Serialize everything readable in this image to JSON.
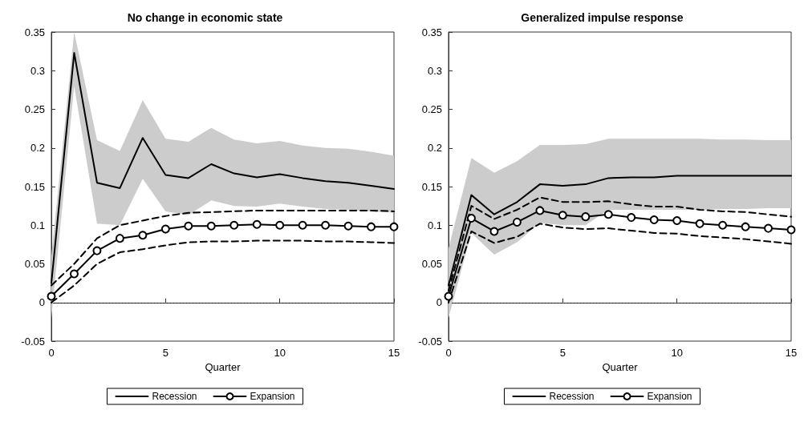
{
  "chart_data": [
    {
      "type": "line",
      "title": "No change in economic state",
      "xlabel": "Quarter",
      "x": [
        0,
        1,
        2,
        3,
        4,
        5,
        6,
        7,
        8,
        9,
        10,
        11,
        12,
        13,
        14,
        15
      ],
      "xlim": [
        0,
        15
      ],
      "xticks": [
        0,
        5,
        10,
        15
      ],
      "ylim": [
        -0.05,
        0.35
      ],
      "yticks": [
        -0.05,
        0,
        0.05,
        0.1,
        0.15,
        0.2,
        0.25,
        0.3,
        0.35
      ],
      "grid": false,
      "legend": "bottom",
      "ref_lines": [
        {
          "axis": "y",
          "value": 0,
          "color": "#000000",
          "line_style": "dotted"
        }
      ],
      "series": [
        {
          "name": "Recession",
          "color": "#000000",
          "line_style": "solid",
          "marker": "none",
          "values": [
            0.025,
            0.323,
            0.155,
            0.148,
            0.213,
            0.165,
            0.161,
            0.179,
            0.167,
            0.162,
            0.166,
            0.161,
            0.157,
            0.155,
            0.151,
            0.147
          ],
          "lower": [
            -0.02,
            0.28,
            0.102,
            0.1,
            0.16,
            0.118,
            0.113,
            0.132,
            0.125,
            0.124,
            0.128,
            0.124,
            0.121,
            0.12,
            0.118,
            0.116
          ],
          "upper": [
            0.06,
            0.35,
            0.21,
            0.196,
            0.262,
            0.212,
            0.208,
            0.226,
            0.211,
            0.206,
            0.209,
            0.203,
            0.2,
            0.199,
            0.195,
            0.19
          ]
        },
        {
          "name": "Expansion",
          "color": "#000000",
          "line_style": "solid",
          "marker": "circle",
          "values": [
            0.008,
            0.037,
            0.067,
            0.083,
            0.087,
            0.095,
            0.099,
            0.099,
            0.1,
            0.101,
            0.1,
            0.1,
            0.1,
            0.099,
            0.098,
            0.098
          ]
        },
        {
          "color": "#000000",
          "line_style": "dashed",
          "marker": "none",
          "values": [
            0.022,
            0.05,
            0.083,
            0.1,
            0.106,
            0.112,
            0.116,
            0.117,
            0.118,
            0.119,
            0.119,
            0.119,
            0.119,
            0.119,
            0.119,
            0.118
          ]
        },
        {
          "color": "#000000",
          "line_style": "dashed",
          "marker": "none",
          "values": [
            0,
            0.022,
            0.05,
            0.065,
            0.069,
            0.074,
            0.078,
            0.079,
            0.079,
            0.08,
            0.08,
            0.08,
            0.079,
            0.079,
            0.078,
            0.077
          ]
        }
      ]
    },
    {
      "type": "line",
      "title": "Generalized impulse response",
      "xlabel": "Quarter",
      "x": [
        0,
        1,
        2,
        3,
        4,
        5,
        6,
        7,
        8,
        9,
        10,
        11,
        12,
        13,
        14,
        15
      ],
      "xlim": [
        0,
        15
      ],
      "xticks": [
        0,
        5,
        10,
        15
      ],
      "ylim": [
        -0.05,
        0.35
      ],
      "yticks": [
        -0.05,
        0,
        0.05,
        0.1,
        0.15,
        0.2,
        0.25,
        0.3,
        0.35
      ],
      "grid": false,
      "legend": "bottom",
      "ref_lines": [
        {
          "axis": "y",
          "value": 0,
          "color": "#000000",
          "line_style": "dotted"
        }
      ],
      "series": [
        {
          "name": "Recession",
          "color": "#000000",
          "line_style": "solid",
          "marker": "none",
          "values": [
            0.022,
            0.139,
            0.114,
            0.13,
            0.153,
            0.151,
            0.153,
            0.161,
            0.162,
            0.162,
            0.164,
            0.164,
            0.164,
            0.164,
            0.164,
            0.164
          ],
          "lower": [
            -0.02,
            0.09,
            0.062,
            0.078,
            0.103,
            0.1,
            0.1,
            0.12,
            0.12,
            0.12,
            0.12,
            0.12,
            0.121,
            0.121,
            0.122,
            0.122
          ],
          "upper": [
            0.07,
            0.187,
            0.168,
            0.183,
            0.204,
            0.204,
            0.205,
            0.212,
            0.212,
            0.212,
            0.212,
            0.212,
            0.211,
            0.211,
            0.21,
            0.21
          ]
        },
        {
          "name": "Expansion",
          "color": "#000000",
          "line_style": "solid",
          "marker": "circle",
          "values": [
            0.008,
            0.109,
            0.092,
            0.104,
            0.119,
            0.113,
            0.111,
            0.114,
            0.11,
            0.107,
            0.106,
            0.102,
            0.1,
            0.098,
            0.096,
            0.094
          ]
        },
        {
          "color": "#000000",
          "line_style": "dashed",
          "marker": "none",
          "values": [
            0.015,
            0.125,
            0.108,
            0.12,
            0.136,
            0.13,
            0.13,
            0.131,
            0.127,
            0.124,
            0.124,
            0.12,
            0.118,
            0.117,
            0.114,
            0.111
          ]
        },
        {
          "color": "#000000",
          "line_style": "dashed",
          "marker": "none",
          "values": [
            0,
            0.092,
            0.077,
            0.085,
            0.102,
            0.097,
            0.095,
            0.096,
            0.093,
            0.09,
            0.089,
            0.086,
            0.084,
            0.082,
            0.079,
            0.076
          ]
        }
      ]
    }
  ]
}
